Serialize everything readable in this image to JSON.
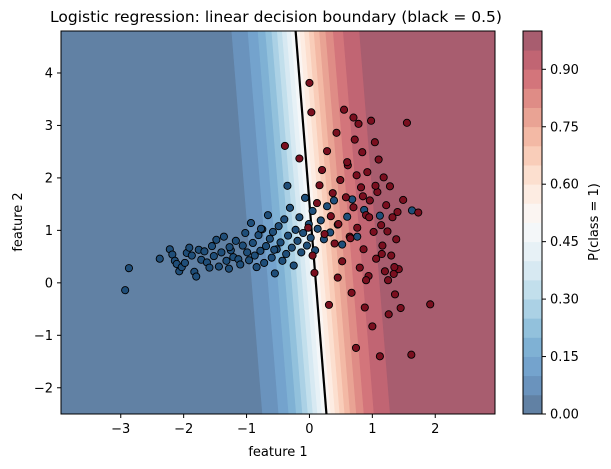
{
  "chart_data": {
    "type": "scatter",
    "title": "Logistic regression: linear decision boundary (black = 0.5)",
    "xlabel": "feature 1",
    "ylabel": "feature 2",
    "xlim": [
      -3.95,
      2.95
    ],
    "ylim": [
      -2.5,
      4.8
    ],
    "xticks": [
      -3,
      -2,
      -1,
      0,
      1,
      2
    ],
    "yticks": [
      -2,
      -1,
      0,
      1,
      2,
      3,
      4
    ],
    "grid": false,
    "decision_boundary": {
      "probability": 0.5,
      "color": "#000000",
      "points": [
        {
          "x": -0.22,
          "y": 4.8
        },
        {
          "x": 0.27,
          "y": -2.5
        }
      ]
    },
    "colorbar": {
      "label": "P(class = 1)",
      "range": [
        0.0,
        1.0
      ],
      "ticks": [
        0.0,
        0.15,
        0.3,
        0.45,
        0.6,
        0.75,
        0.9
      ],
      "tick_labels": [
        "0.00",
        "0.15",
        "0.30",
        "0.45",
        "0.60",
        "0.75",
        "0.90"
      ],
      "levels": 20,
      "colormap": "RdBu_r",
      "alpha": 0.65
    },
    "series": [
      {
        "class": 0,
        "color": "#1f4e79",
        "points": [
          [
            -2.93,
            -0.14
          ],
          [
            -2.87,
            0.28
          ],
          [
            -2.38,
            0.46
          ],
          [
            -2.22,
            0.64
          ],
          [
            -2.18,
            0.54
          ],
          [
            -2.14,
            0.42
          ],
          [
            -2.11,
            0.36
          ],
          [
            -2.07,
            0.22
          ],
          [
            -2.03,
            0.3
          ],
          [
            -1.98,
            0.38
          ],
          [
            -1.95,
            0.57
          ],
          [
            -1.91,
            0.67
          ],
          [
            -1.87,
            0.52
          ],
          [
            -1.83,
            0.21
          ],
          [
            -1.8,
            0.12
          ],
          [
            -1.76,
            0.63
          ],
          [
            -1.72,
            0.44
          ],
          [
            -1.67,
            0.6
          ],
          [
            -1.63,
            0.39
          ],
          [
            -1.59,
            0.29
          ],
          [
            -1.55,
            0.7
          ],
          [
            -1.52,
            0.51
          ],
          [
            -1.48,
            0.82
          ],
          [
            -1.44,
            0.31
          ],
          [
            -1.4,
            0.58
          ],
          [
            -1.36,
            0.88
          ],
          [
            -1.32,
            0.42
          ],
          [
            -1.28,
            0.27
          ],
          [
            -1.25,
            0.62
          ],
          [
            -1.21,
            0.49
          ],
          [
            -1.17,
            0.8
          ],
          [
            -1.13,
            0.45
          ],
          [
            -1.1,
            0.35
          ],
          [
            -1.06,
            0.71
          ],
          [
            -1.02,
            0.95
          ],
          [
            -0.99,
            0.58
          ],
          [
            -0.96,
            0.43
          ],
          [
            -0.93,
            1.14
          ],
          [
            -0.9,
            0.76
          ],
          [
            -0.87,
            0.52
          ],
          [
            -0.84,
            0.3
          ],
          [
            -0.81,
            0.91
          ],
          [
            -0.78,
            0.61
          ],
          [
            -0.75,
            1.02
          ],
          [
            -0.72,
            0.38
          ],
          [
            -0.69,
            0.7
          ],
          [
            -0.66,
            1.29
          ],
          [
            -0.63,
            0.84
          ],
          [
            -0.6,
            0.48
          ],
          [
            -0.58,
            0.97
          ],
          [
            -0.55,
            0.18
          ],
          [
            -0.52,
            0.64
          ],
          [
            -0.49,
            1.08
          ],
          [
            -0.46,
            0.77
          ],
          [
            -0.43,
            0.42
          ],
          [
            -0.4,
            1.21
          ],
          [
            -0.37,
            0.55
          ],
          [
            -0.34,
            0.9
          ],
          [
            -0.31,
            1.43
          ],
          [
            -0.28,
            0.67
          ],
          [
            -0.25,
            0.33
          ],
          [
            -0.22,
            1.01
          ],
          [
            -0.19,
            0.8
          ],
          [
            -0.16,
            1.25
          ],
          [
            -0.13,
            0.58
          ],
          [
            -0.1,
            0.95
          ],
          [
            -0.07,
            1.62
          ],
          [
            -0.04,
            0.71
          ],
          [
            -0.01,
            1.12
          ],
          [
            0.02,
            0.86
          ],
          [
            0.05,
            1.37
          ],
          [
            0.09,
            0.62
          ],
          [
            0.13,
            1.03
          ],
          [
            0.18,
            1.19
          ],
          [
            0.23,
            0.83
          ],
          [
            0.28,
            1.46
          ],
          [
            0.33,
            0.96
          ],
          [
            0.39,
            1.57
          ],
          [
            0.45,
            1.11
          ],
          [
            0.52,
            0.73
          ],
          [
            0.6,
            1.26
          ],
          [
            0.68,
            1.59
          ],
          [
            0.76,
            0.88
          ],
          [
            0.87,
            1.39
          ],
          [
            1.12,
            1.28
          ],
          [
            1.63,
            1.38
          ],
          [
            -0.35,
            1.85
          ],
          [
            -1.27,
            0.68
          ],
          [
            -0.56,
            0.63
          ],
          [
            -0.77,
            1.03
          ]
        ]
      },
      {
        "class": 1,
        "color": "#7a0f1f",
        "points": [
          [
            -0.39,
            2.61
          ],
          [
            -0.16,
            2.37
          ],
          [
            -0.02,
            1.05
          ],
          [
            0.0,
            3.81
          ],
          [
            0.03,
            3.25
          ],
          [
            0.05,
            0.52
          ],
          [
            0.08,
            0.19
          ],
          [
            0.12,
            1.52
          ],
          [
            0.16,
            1.86
          ],
          [
            0.2,
            2.15
          ],
          [
            0.24,
            0.93
          ],
          [
            0.28,
            2.51
          ],
          [
            0.31,
            -0.42
          ],
          [
            0.34,
            1.27
          ],
          [
            0.37,
            1.71
          ],
          [
            0.4,
            0.75
          ],
          [
            0.43,
            2.86
          ],
          [
            0.46,
            1.12
          ],
          [
            0.49,
            1.96
          ],
          [
            0.52,
            0.41
          ],
          [
            0.55,
            3.3
          ],
          [
            0.58,
            1.63
          ],
          [
            0.61,
            2.24
          ],
          [
            0.64,
            0.88
          ],
          [
            0.67,
            -0.19
          ],
          [
            0.7,
            1.44
          ],
          [
            0.72,
            2.73
          ],
          [
            0.74,
            -1.24
          ],
          [
            0.76,
            1.05
          ],
          [
            0.78,
            3.03
          ],
          [
            0.8,
            0.29
          ],
          [
            0.82,
            1.82
          ],
          [
            0.84,
            2.49
          ],
          [
            0.86,
            0.64
          ],
          [
            0.88,
            -0.47
          ],
          [
            0.9,
            1.29
          ],
          [
            0.92,
            2.11
          ],
          [
            0.94,
            0.13
          ],
          [
            0.96,
            1.57
          ],
          [
            0.98,
            3.09
          ],
          [
            1.0,
            -0.83
          ],
          [
            1.02,
            0.97
          ],
          [
            1.04,
            2.68
          ],
          [
            1.06,
            0.46
          ],
          [
            1.08,
            1.73
          ],
          [
            1.1,
            2.35
          ],
          [
            1.12,
            -1.4
          ],
          [
            1.14,
            1.1
          ],
          [
            1.16,
            0.71
          ],
          [
            1.18,
            2.01
          ],
          [
            1.2,
            0.22
          ],
          [
            1.22,
            1.48
          ],
          [
            1.24,
            0.98
          ],
          [
            1.26,
            -0.6
          ],
          [
            1.28,
            1.84
          ],
          [
            1.3,
            0.52
          ],
          [
            1.32,
            1.25
          ],
          [
            1.34,
            0.17
          ],
          [
            1.36,
            -0.22
          ],
          [
            1.38,
            0.83
          ],
          [
            1.4,
            1.35
          ],
          [
            1.42,
            0.26
          ],
          [
            1.45,
            -0.48
          ],
          [
            1.49,
            1.58
          ],
          [
            1.55,
            3.05
          ],
          [
            1.62,
            -1.37
          ],
          [
            1.73,
            1.34
          ],
          [
            1.92,
            -0.41
          ],
          [
            0.95,
            1.25
          ],
          [
            0.65,
            0.85
          ],
          [
            0.85,
            1.65
          ],
          [
            0.75,
            2.05
          ],
          [
            1.05,
            1.85
          ],
          [
            0.9,
            0.05
          ],
          [
            1.15,
            0.55
          ],
          [
            0.7,
            3.15
          ],
          [
            1.25,
            0.05
          ],
          [
            0.6,
            2.3
          ],
          [
            0.45,
            0.1
          ],
          [
            1.35,
            0.3
          ]
        ]
      }
    ]
  }
}
